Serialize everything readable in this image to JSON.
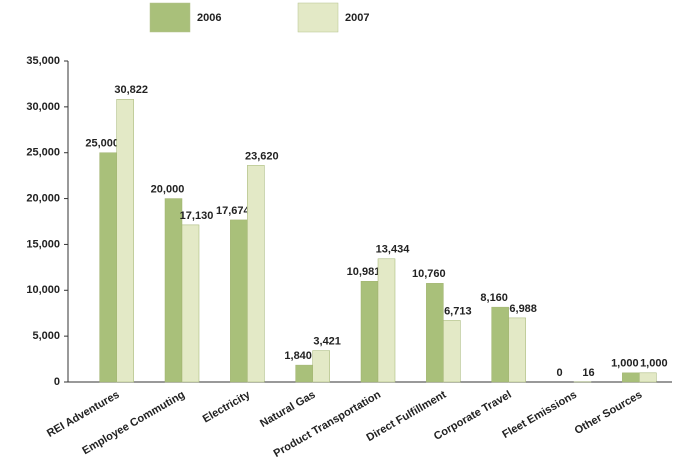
{
  "chart_data": {
    "type": "bar",
    "categories": [
      "REI Adventures",
      "Employee Commuting",
      "Electricity",
      "Natural Gas",
      "Product Transportation",
      "Direct Fulfillment",
      "Corporate Travel",
      "Fleet Emissions",
      "Other Sources"
    ],
    "series": [
      {
        "name": "2006",
        "color": "#a9c07a",
        "values": [
          25000,
          20000,
          17674,
          1840,
          10981,
          10760,
          8160,
          0,
          1000
        ],
        "value_labels": [
          "25,000",
          "20,000",
          "17,674",
          "1,840",
          "10,981",
          "10,760",
          "8,160",
          "0",
          "1,000"
        ]
      },
      {
        "name": "2007",
        "color": "#e3e9c6",
        "values": [
          30822,
          17130,
          23620,
          3421,
          13434,
          6713,
          6988,
          16,
          1000
        ],
        "value_labels": [
          "30,822",
          "17,130",
          "23,620",
          "3,421",
          "13,434",
          "6,713",
          "6,988",
          "16",
          "1,000"
        ]
      }
    ],
    "ylim": [
      0,
      35000
    ],
    "yticks": [
      0,
      {
        "value": 5000,
        "label": "5,000"
      },
      {
        "value": 10000,
        "label": "10,000"
      },
      {
        "value": 15000,
        "label": "15,000"
      },
      {
        "value": 20000,
        "label": "20,000"
      },
      {
        "value": 25000,
        "label": "25,000"
      },
      {
        "value": 30000,
        "label": "30,000"
      },
      {
        "value": 35000,
        "label": "35,000"
      }
    ],
    "grid": false
  }
}
